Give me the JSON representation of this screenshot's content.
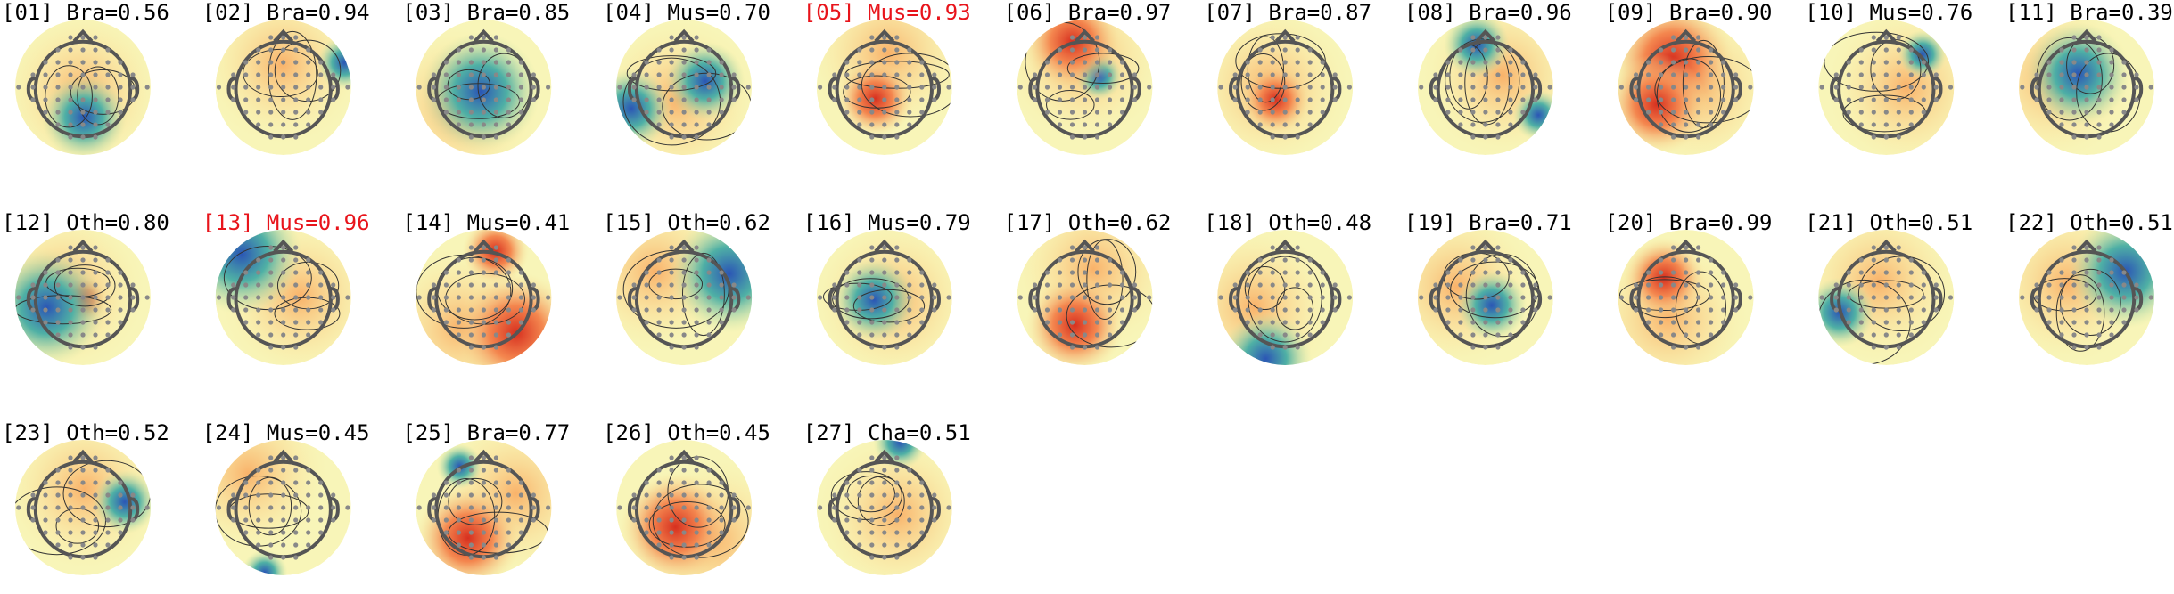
{
  "components": [
    {
      "title": "[01] Bra=0.56",
      "color": "#000000"
    },
    {
      "title": "[02] Bra=0.94",
      "color": "#000000"
    },
    {
      "title": "[03] Bra=0.85",
      "color": "#000000"
    },
    {
      "title": "[04] Mus=0.70",
      "color": "#000000"
    },
    {
      "title": "[05] Mus=0.93",
      "color": "#e8141b"
    },
    {
      "title": "[06] Bra=0.97",
      "color": "#000000"
    },
    {
      "title": "[07] Bra=0.87",
      "color": "#000000"
    },
    {
      "title": "[08] Bra=0.96",
      "color": "#000000"
    },
    {
      "title": "[09] Bra=0.90",
      "color": "#000000"
    },
    {
      "title": "[10] Mus=0.76",
      "color": "#000000"
    },
    {
      "title": "[11] Bra=0.39",
      "color": "#000000"
    },
    {
      "title": "[12] Oth=0.80",
      "color": "#000000"
    },
    {
      "title": "[13] Mus=0.96",
      "color": "#e8141b"
    },
    {
      "title": "[14] Mus=0.41",
      "color": "#000000"
    },
    {
      "title": "[15] Oth=0.62",
      "color": "#000000"
    },
    {
      "title": "[16] Mus=0.79",
      "color": "#000000"
    },
    {
      "title": "[17] Oth=0.62",
      "color": "#000000"
    },
    {
      "title": "[18] Oth=0.48",
      "color": "#000000"
    },
    {
      "title": "[19] Bra=0.71",
      "color": "#000000"
    },
    {
      "title": "[20] Bra=0.99",
      "color": "#000000"
    },
    {
      "title": "[21] Oth=0.51",
      "color": "#000000"
    },
    {
      "title": "[22] Oth=0.51",
      "color": "#000000"
    },
    {
      "title": "[23] Oth=0.52",
      "color": "#000000"
    },
    {
      "title": "[24] Mus=0.45",
      "color": "#000000"
    },
    {
      "title": "[25] Bra=0.77",
      "color": "#000000"
    },
    {
      "title": "[26] Oth=0.45",
      "color": "#000000"
    },
    {
      "title": "[27] Cha=0.51",
      "color": "#000000"
    }
  ]
}
